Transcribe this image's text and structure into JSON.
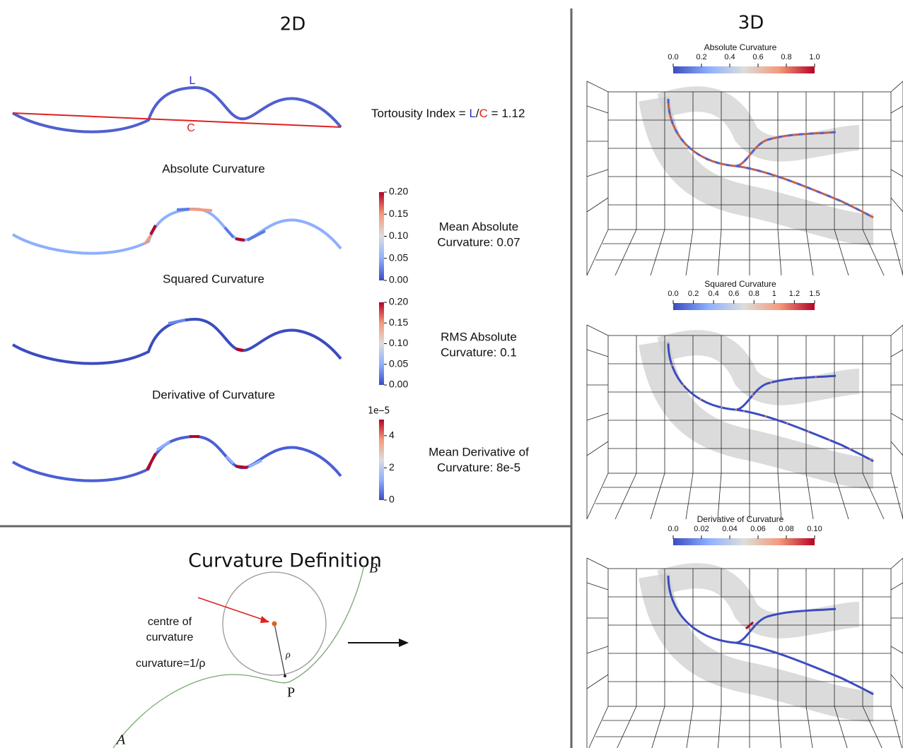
{
  "left_panel": {
    "title": "2D",
    "tortuosity": {
      "curve_label": "L",
      "chord_label": "C",
      "prefix": "Tortousity Index =",
      "numerator": "L",
      "slash": "/",
      "denominator": "C",
      "result": "= 1.12"
    },
    "plots": [
      {
        "title": "Absolute Curvature",
        "colorbar_ticks": [
          "0.20",
          "0.15",
          "0.10",
          "0.05",
          "0.00"
        ],
        "stat_lines": [
          "Mean Absolute",
          "Curvature:  0.07"
        ]
      },
      {
        "title": "Squared Curvature",
        "colorbar_ticks": [
          "0.20",
          "0.15",
          "0.10",
          "0.05",
          "0.00"
        ],
        "stat_lines": [
          "RMS Absolute",
          "Curvature:  0.1"
        ]
      },
      {
        "title": "Derivative of Curvature",
        "colorbar_exponent": "1e−5",
        "colorbar_ticks": [
          "4",
          "2",
          "0"
        ],
        "stat_lines": [
          "Mean Derivative of",
          "Curvature:  8e-5"
        ]
      }
    ]
  },
  "definition": {
    "title": "Curvature Definition",
    "centre_label": [
      "centre of",
      "curvature"
    ],
    "formula": "curvature=1/ρ",
    "rho": "ρ",
    "point_p": "P",
    "point_a": "A",
    "point_b": "B"
  },
  "right_panel": {
    "title": "3D",
    "views": [
      {
        "colorbar_title": "Absolute Curvature",
        "colorbar_ticks": [
          "0.0",
          "0.2",
          "0.4",
          "0.6",
          "0.8",
          "1.0"
        ]
      },
      {
        "colorbar_title": "Squared Curvature",
        "colorbar_ticks": [
          "0.0",
          "0.2",
          "0.4",
          "0.6",
          "0.8",
          "1",
          "1.2",
          "1.5"
        ]
      },
      {
        "colorbar_title": "Derivative of Curvature",
        "colorbar_ticks": [
          "0.0",
          "0.02",
          "0.04",
          "0.06",
          "0.08",
          "0.10"
        ]
      }
    ]
  }
}
